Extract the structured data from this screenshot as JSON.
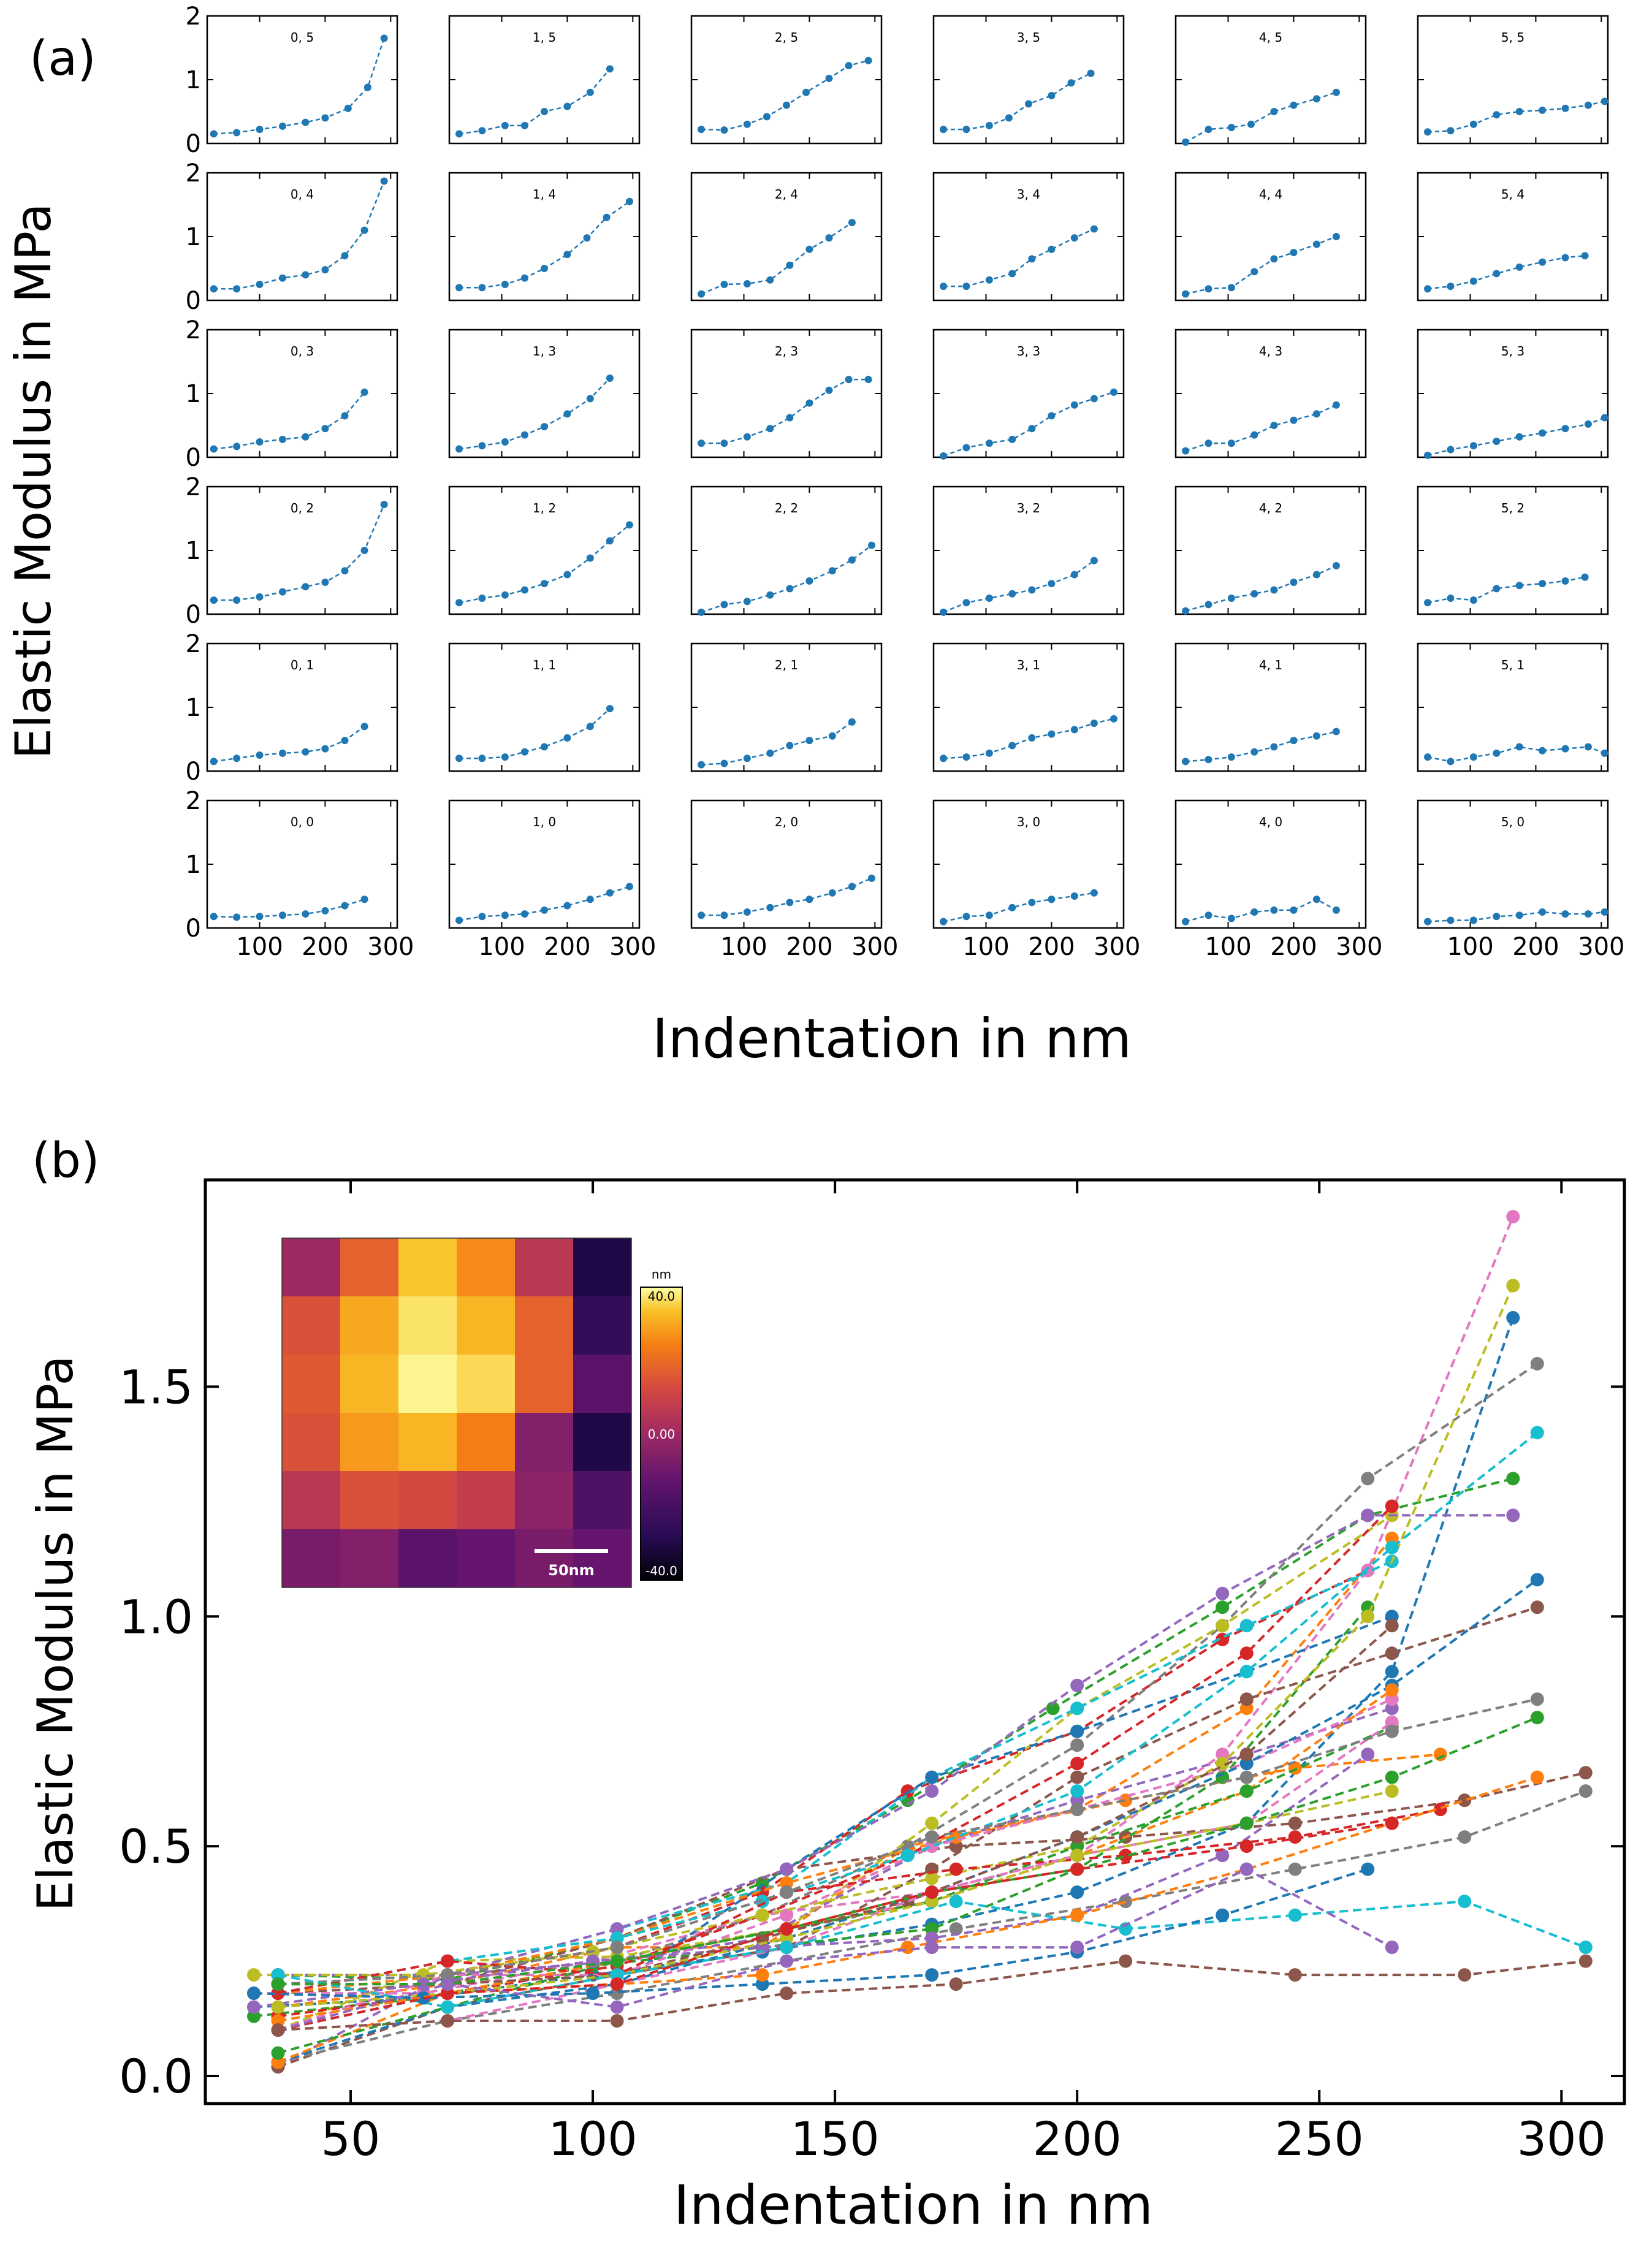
{
  "chart_data": [
    {
      "type": "line",
      "panel_label": "(a)",
      "xlabel": "Indentation in nm",
      "ylabel": "Elastic Modulus in MPa",
      "xlim": [
        20,
        310
      ],
      "ylim": [
        0,
        2
      ],
      "xticks": [
        100,
        200,
        300
      ],
      "yticks": [
        0,
        1,
        2
      ],
      "x_tick_labels": [
        "100",
        "200",
        "300"
      ],
      "y_tick_labels": [
        "0",
        "1",
        "2"
      ],
      "color": "#1f77b4",
      "cells": [
        {
          "label": "0, 5",
          "x": [
            30,
            65,
            100,
            135,
            170,
            200,
            235,
            265,
            290
          ],
          "y": [
            0.15,
            0.17,
            0.22,
            0.27,
            0.33,
            0.4,
            0.55,
            0.88,
            1.65
          ]
        },
        {
          "label": "1, 5",
          "x": [
            35,
            70,
            105,
            135,
            165,
            200,
            235,
            265
          ],
          "y": [
            0.15,
            0.2,
            0.28,
            0.28,
            0.5,
            0.58,
            0.8,
            1.17
          ]
        },
        {
          "label": "2, 5",
          "x": [
            35,
            70,
            105,
            135,
            165,
            195,
            230,
            260,
            290
          ],
          "y": [
            0.22,
            0.21,
            0.3,
            0.42,
            0.6,
            0.8,
            1.02,
            1.22,
            1.3
          ]
        },
        {
          "label": "3, 5",
          "x": [
            35,
            70,
            105,
            135,
            165,
            200,
            230,
            260
          ],
          "y": [
            0.22,
            0.22,
            0.28,
            0.4,
            0.62,
            0.75,
            0.95,
            1.1
          ]
        },
        {
          "label": "4, 5",
          "x": [
            35,
            70,
            105,
            135,
            170,
            200,
            235,
            265
          ],
          "y": [
            0.02,
            0.22,
            0.25,
            0.3,
            0.5,
            0.6,
            0.7,
            0.8
          ]
        },
        {
          "label": "5, 5",
          "x": [
            35,
            70,
            105,
            140,
            175,
            210,
            245,
            280,
            305
          ],
          "y": [
            0.18,
            0.2,
            0.3,
            0.45,
            0.5,
            0.52,
            0.55,
            0.6,
            0.66
          ]
        },
        {
          "label": "0, 4",
          "x": [
            30,
            65,
            100,
            135,
            170,
            200,
            230,
            260,
            290
          ],
          "y": [
            0.18,
            0.18,
            0.25,
            0.35,
            0.4,
            0.48,
            0.7,
            1.1,
            1.87
          ]
        },
        {
          "label": "1, 4",
          "x": [
            35,
            70,
            105,
            135,
            165,
            200,
            230,
            260,
            295
          ],
          "y": [
            0.2,
            0.2,
            0.25,
            0.35,
            0.5,
            0.72,
            0.98,
            1.3,
            1.55
          ]
        },
        {
          "label": "2, 4",
          "x": [
            35,
            70,
            105,
            140,
            170,
            200,
            230,
            265
          ],
          "y": [
            0.1,
            0.25,
            0.26,
            0.32,
            0.55,
            0.8,
            0.98,
            1.22
          ]
        },
        {
          "label": "3, 4",
          "x": [
            35,
            70,
            105,
            140,
            170,
            200,
            235,
            265
          ],
          "y": [
            0.22,
            0.22,
            0.32,
            0.42,
            0.65,
            0.8,
            0.98,
            1.12
          ]
        },
        {
          "label": "4, 4",
          "x": [
            35,
            70,
            105,
            140,
            170,
            200,
            235,
            265
          ],
          "y": [
            0.1,
            0.18,
            0.2,
            0.45,
            0.65,
            0.75,
            0.88,
            1.0
          ]
        },
        {
          "label": "5, 4",
          "x": [
            35,
            70,
            105,
            140,
            175,
            210,
            245,
            275
          ],
          "y": [
            0.18,
            0.22,
            0.3,
            0.42,
            0.52,
            0.6,
            0.67,
            0.7
          ]
        },
        {
          "label": "0, 3",
          "x": [
            30,
            65,
            100,
            135,
            170,
            200,
            230,
            260
          ],
          "y": [
            0.13,
            0.17,
            0.24,
            0.28,
            0.32,
            0.45,
            0.65,
            1.02
          ]
        },
        {
          "label": "1, 3",
          "x": [
            35,
            70,
            105,
            135,
            165,
            200,
            235,
            265
          ],
          "y": [
            0.13,
            0.18,
            0.24,
            0.35,
            0.48,
            0.68,
            0.92,
            1.24
          ]
        },
        {
          "label": "2, 3",
          "x": [
            35,
            70,
            105,
            140,
            170,
            200,
            230,
            260,
            290
          ],
          "y": [
            0.22,
            0.22,
            0.32,
            0.45,
            0.62,
            0.85,
            1.05,
            1.22,
            1.22
          ]
        },
        {
          "label": "3, 3",
          "x": [
            35,
            70,
            105,
            140,
            170,
            200,
            235,
            265,
            295
          ],
          "y": [
            0.02,
            0.15,
            0.22,
            0.28,
            0.45,
            0.65,
            0.82,
            0.92,
            1.02
          ]
        },
        {
          "label": "4, 3",
          "x": [
            35,
            70,
            105,
            140,
            170,
            200,
            235,
            265
          ],
          "y": [
            0.1,
            0.22,
            0.22,
            0.35,
            0.5,
            0.58,
            0.68,
            0.82
          ]
        },
        {
          "label": "5, 3",
          "x": [
            35,
            70,
            105,
            140,
            175,
            210,
            245,
            280,
            305
          ],
          "y": [
            0.03,
            0.12,
            0.18,
            0.25,
            0.32,
            0.38,
            0.45,
            0.52,
            0.62
          ]
        },
        {
          "label": "0, 2",
          "x": [
            30,
            65,
            100,
            135,
            170,
            200,
            230,
            260,
            290
          ],
          "y": [
            0.22,
            0.22,
            0.27,
            0.35,
            0.43,
            0.5,
            0.68,
            1.0,
            1.72
          ]
        },
        {
          "label": "1, 2",
          "x": [
            35,
            70,
            105,
            135,
            165,
            200,
            235,
            265,
            295
          ],
          "y": [
            0.18,
            0.25,
            0.3,
            0.38,
            0.48,
            0.62,
            0.88,
            1.15,
            1.4
          ]
        },
        {
          "label": "2, 2",
          "x": [
            35,
            70,
            105,
            140,
            170,
            200,
            235,
            265,
            295
          ],
          "y": [
            0.03,
            0.15,
            0.2,
            0.3,
            0.4,
            0.52,
            0.68,
            0.85,
            1.08
          ]
        },
        {
          "label": "3, 2",
          "x": [
            35,
            70,
            105,
            140,
            170,
            200,
            235,
            265
          ],
          "y": [
            0.03,
            0.18,
            0.25,
            0.32,
            0.38,
            0.48,
            0.62,
            0.84
          ]
        },
        {
          "label": "4, 2",
          "x": [
            35,
            70,
            105,
            140,
            170,
            200,
            235,
            265
          ],
          "y": [
            0.05,
            0.15,
            0.25,
            0.32,
            0.38,
            0.5,
            0.62,
            0.76
          ]
        },
        {
          "label": "5, 2",
          "x": [
            35,
            70,
            105,
            140,
            175,
            210,
            245,
            275
          ],
          "y": [
            0.18,
            0.25,
            0.22,
            0.4,
            0.45,
            0.48,
            0.52,
            0.58
          ]
        },
        {
          "label": "0, 1",
          "x": [
            30,
            65,
            100,
            135,
            170,
            200,
            230,
            260
          ],
          "y": [
            0.15,
            0.2,
            0.25,
            0.28,
            0.3,
            0.35,
            0.48,
            0.7
          ]
        },
        {
          "label": "1, 1",
          "x": [
            35,
            70,
            105,
            135,
            165,
            200,
            235,
            265
          ],
          "y": [
            0.2,
            0.2,
            0.22,
            0.3,
            0.38,
            0.52,
            0.7,
            0.98
          ]
        },
        {
          "label": "2, 1",
          "x": [
            35,
            70,
            105,
            140,
            170,
            200,
            235,
            265
          ],
          "y": [
            0.1,
            0.12,
            0.2,
            0.28,
            0.4,
            0.48,
            0.55,
            0.77
          ]
        },
        {
          "label": "3, 1",
          "x": [
            35,
            70,
            105,
            140,
            170,
            200,
            235,
            265,
            295
          ],
          "y": [
            0.2,
            0.22,
            0.28,
            0.4,
            0.52,
            0.58,
            0.65,
            0.75,
            0.82
          ]
        },
        {
          "label": "4, 1",
          "x": [
            35,
            70,
            105,
            140,
            170,
            200,
            235,
            265
          ],
          "y": [
            0.15,
            0.18,
            0.22,
            0.3,
            0.38,
            0.48,
            0.55,
            0.62
          ]
        },
        {
          "label": "5, 1",
          "x": [
            35,
            70,
            105,
            140,
            175,
            210,
            245,
            280,
            305
          ],
          "y": [
            0.22,
            0.15,
            0.22,
            0.28,
            0.38,
            0.32,
            0.35,
            0.38,
            0.28
          ]
        },
        {
          "label": "0, 0",
          "x": [
            30,
            65,
            100,
            135,
            170,
            200,
            230,
            260
          ],
          "y": [
            0.18,
            0.17,
            0.18,
            0.2,
            0.22,
            0.27,
            0.35,
            0.45
          ]
        },
        {
          "label": "1, 0",
          "x": [
            35,
            70,
            105,
            135,
            165,
            200,
            235,
            265,
            295
          ],
          "y": [
            0.12,
            0.18,
            0.2,
            0.22,
            0.28,
            0.35,
            0.45,
            0.55,
            0.65
          ]
        },
        {
          "label": "2, 0",
          "x": [
            35,
            70,
            105,
            140,
            170,
            200,
            235,
            265,
            295
          ],
          "y": [
            0.2,
            0.2,
            0.25,
            0.32,
            0.4,
            0.45,
            0.55,
            0.65,
            0.78
          ]
        },
        {
          "label": "3, 0",
          "x": [
            35,
            70,
            105,
            140,
            170,
            200,
            235,
            265
          ],
          "y": [
            0.1,
            0.18,
            0.2,
            0.32,
            0.4,
            0.45,
            0.5,
            0.55
          ]
        },
        {
          "label": "4, 0",
          "x": [
            35,
            70,
            105,
            140,
            170,
            200,
            235,
            265
          ],
          "y": [
            0.1,
            0.2,
            0.15,
            0.25,
            0.28,
            0.28,
            0.45,
            0.28
          ]
        },
        {
          "label": "5, 0",
          "x": [
            35,
            70,
            105,
            140,
            175,
            210,
            245,
            280,
            305
          ],
          "y": [
            0.1,
            0.12,
            0.12,
            0.18,
            0.2,
            0.25,
            0.22,
            0.22,
            0.25
          ]
        }
      ]
    },
    {
      "type": "line",
      "panel_label": "(b)",
      "xlabel": "Indentation in nm",
      "ylabel": "Elastic Modulus in MPa",
      "xlim": [
        20,
        313
      ],
      "ylim": [
        -0.06,
        1.95
      ],
      "xticks": [
        50,
        100,
        150,
        200,
        250,
        300
      ],
      "yticks": [
        0.0,
        0.5,
        1.0,
        1.5
      ],
      "x_tick_labels": [
        "50",
        "100",
        "150",
        "200",
        "250",
        "300"
      ],
      "y_tick_labels": [
        "0.0",
        "0.5",
        "1.0",
        "1.5"
      ],
      "palette": [
        "#1f77b4",
        "#ff7f0e",
        "#2ca02c",
        "#d62728",
        "#9467bd",
        "#8c564b",
        "#e377c2",
        "#7f7f7f",
        "#bcbd22",
        "#17becf"
      ],
      "note": "Each series is one grid cell (i, j) from panel (a) plotted together; marker and line colors follow the palette in order.",
      "inset": {
        "type": "heatmap",
        "colorbar_unit": "nm",
        "colorbar_ticks": [
          "40.0",
          "0.00",
          "-40.0"
        ],
        "colorbar_range": [
          -40,
          40
        ],
        "scalebar_label": "50nm",
        "grid": [
          [
            0,
            18,
            34,
            26,
            6,
            -30
          ],
          [
            14,
            30,
            37,
            32,
            18,
            -25
          ],
          [
            16,
            32,
            39,
            36,
            18,
            -15
          ],
          [
            14,
            28,
            32,
            24,
            -6,
            -30
          ],
          [
            6,
            14,
            12,
            8,
            -4,
            -18
          ],
          [
            -8,
            -6,
            -15,
            -12,
            -8,
            -12
          ]
        ]
      }
    }
  ]
}
